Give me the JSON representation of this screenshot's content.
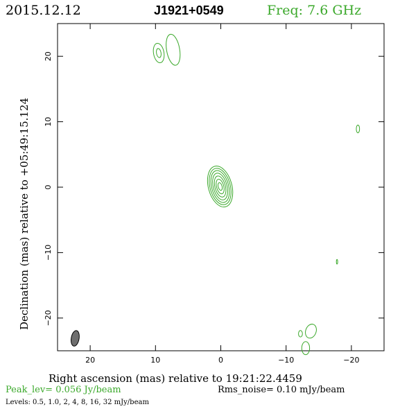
{
  "header": {
    "date": "2015.12.12",
    "source": "J1921+0549",
    "freq": "Freq: 7.6 GHz"
  },
  "footer": {
    "peak": "Peak_lev=  0.056 Jy/beam",
    "rms": "Rms_noise= 0.10 mJy/beam",
    "levels": "Levels: 0.5, 1.0,   2,   4,   8,  16,  32 mJy/beam"
  },
  "colors": {
    "contour": "#3aa82a",
    "accent_text": "#3aa82a",
    "beam_fill": "#6e6e6e",
    "frame": "#000000"
  },
  "chart_data": {
    "type": "contour",
    "xlabel": "Right ascension (mas) relative to 19:21:22.4459",
    "ylabel": "Declination (mas) relative to +05:49:15.124",
    "xlim": [
      25,
      -25
    ],
    "ylim": [
      -25,
      25
    ],
    "xticks": [
      20,
      10,
      0,
      -10,
      -20
    ],
    "xtick_labels": [
      "20",
      "10",
      "0",
      "−10",
      "−20"
    ],
    "yticks": [
      20,
      10,
      0,
      -10,
      -20
    ],
    "ytick_labels": [
      "20",
      "10",
      "0",
      "−10",
      "−20"
    ],
    "contour_levels_mJy": [
      0.5,
      1.0,
      2,
      4,
      8,
      16,
      32
    ],
    "peak_Jy_per_beam": 0.056,
    "rms_mJy_per_beam": 0.1,
    "components": [
      {
        "name": "core",
        "x": 0.1,
        "y": 0.1,
        "rings": [
          {
            "a": 1.8,
            "b": 3.2,
            "angle": -15
          },
          {
            "a": 1.55,
            "b": 2.85,
            "angle": -15
          },
          {
            "a": 1.3,
            "b": 2.5,
            "angle": -15
          },
          {
            "a": 1.05,
            "b": 2.1,
            "angle": -15
          },
          {
            "a": 0.8,
            "b": 1.65,
            "angle": -15
          },
          {
            "a": 0.55,
            "b": 1.15,
            "angle": -15
          },
          {
            "a": 0.3,
            "b": 0.6,
            "angle": -15
          }
        ]
      },
      {
        "name": "north-blob-a",
        "x": 9.5,
        "y": 20.5,
        "rings": [
          {
            "a": 0.8,
            "b": 1.5,
            "angle": -10
          },
          {
            "a": 0.35,
            "b": 0.7,
            "angle": -10
          }
        ]
      },
      {
        "name": "north-blob-b",
        "x": 7.3,
        "y": 21.0,
        "rings": [
          {
            "a": 1.0,
            "b": 2.4,
            "angle": -10
          }
        ]
      },
      {
        "name": "east-spot",
        "x": -21.0,
        "y": 8.9,
        "rings": [
          {
            "a": 0.25,
            "b": 0.6,
            "angle": 0
          }
        ]
      },
      {
        "name": "south-spot",
        "x": -17.8,
        "y": -11.4,
        "rings": [
          {
            "a": 0.1,
            "b": 0.35,
            "angle": 0
          }
        ]
      },
      {
        "name": "south-blob-a",
        "x": -13.8,
        "y": -22.0,
        "rings": [
          {
            "a": 0.8,
            "b": 1.1,
            "angle": 20
          }
        ]
      },
      {
        "name": "south-blob-b",
        "x": -12.2,
        "y": -22.4,
        "rings": [
          {
            "a": 0.3,
            "b": 0.5,
            "angle": 0
          }
        ]
      },
      {
        "name": "south-blob-c",
        "x": -13.0,
        "y": -24.6,
        "rings": [
          {
            "a": 0.6,
            "b": 1.0,
            "angle": 0
          }
        ]
      }
    ],
    "beam": {
      "x": 22.3,
      "y": -23.1,
      "a": 0.6,
      "b": 1.2,
      "angle": 10
    }
  }
}
